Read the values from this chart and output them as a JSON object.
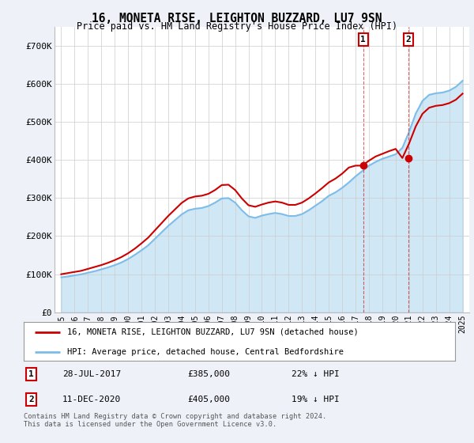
{
  "title": "16, MONETA RISE, LEIGHTON BUZZARD, LU7 9SN",
  "subtitle": "Price paid vs. HM Land Registry's House Price Index (HPI)",
  "hpi_label": "HPI: Average price, detached house, Central Bedfordshire",
  "property_label": "16, MONETA RISE, LEIGHTON BUZZARD, LU7 9SN (detached house)",
  "footer": "Contains HM Land Registry data © Crown copyright and database right 2024.\nThis data is licensed under the Open Government Licence v3.0.",
  "hpi_color": "#7bbce8",
  "property_color": "#cc0000",
  "background_color": "#eef2f8",
  "plot_bg": "#ffffff",
  "ylim": [
    0,
    750000
  ],
  "yticks": [
    0,
    100000,
    200000,
    300000,
    400000,
    500000,
    600000,
    700000
  ],
  "ytick_labels": [
    "£0",
    "£100K",
    "£200K",
    "£300K",
    "£400K",
    "£500K",
    "£600K",
    "£700K"
  ],
  "sale1_x": 2017.58,
  "sale1_y": 385000,
  "sale1_date": "28-JUL-2017",
  "sale1_price_str": "£385,000",
  "sale1_pct": "22% ↓ HPI",
  "sale2_x": 2020.95,
  "sale2_y": 405000,
  "sale2_date": "11-DEC-2020",
  "sale2_price_str": "£405,000",
  "sale2_pct": "19% ↓ HPI",
  "hpi_x": [
    1995.0,
    1995.5,
    1996.0,
    1996.5,
    1997.0,
    1997.5,
    1998.0,
    1998.5,
    1999.0,
    1999.5,
    2000.0,
    2000.5,
    2001.0,
    2001.5,
    2002.0,
    2002.5,
    2003.0,
    2003.5,
    2004.0,
    2004.5,
    2005.0,
    2005.5,
    2006.0,
    2006.5,
    2007.0,
    2007.5,
    2008.0,
    2008.5,
    2009.0,
    2009.5,
    2010.0,
    2010.5,
    2011.0,
    2011.5,
    2012.0,
    2012.5,
    2013.0,
    2013.5,
    2014.0,
    2014.5,
    2015.0,
    2015.5,
    2016.0,
    2016.5,
    2017.0,
    2017.5,
    2018.0,
    2018.5,
    2019.0,
    2019.5,
    2020.0,
    2020.5,
    2021.0,
    2021.5,
    2022.0,
    2022.5,
    2023.0,
    2023.5,
    2024.0,
    2024.5,
    2025.0
  ],
  "hpi_y": [
    92000,
    94000,
    97000,
    100000,
    104000,
    108000,
    113000,
    118000,
    124000,
    131000,
    140000,
    151000,
    163000,
    176000,
    193000,
    210000,
    227000,
    242000,
    257000,
    268000,
    272000,
    274000,
    279000,
    288000,
    299000,
    300000,
    288000,
    268000,
    252000,
    248000,
    254000,
    258000,
    261000,
    258000,
    253000,
    253000,
    258000,
    268000,
    280000,
    292000,
    306000,
    315000,
    327000,
    341000,
    357000,
    371000,
    385000,
    395000,
    403000,
    409000,
    415000,
    432000,
    474000,
    522000,
    555000,
    571000,
    575000,
    577000,
    582000,
    592000,
    608000
  ],
  "prop_x": [
    1995.0,
    1995.5,
    1996.0,
    1996.5,
    1997.0,
    1997.5,
    1998.0,
    1998.5,
    1999.0,
    1999.5,
    2000.0,
    2000.5,
    2001.0,
    2001.5,
    2002.0,
    2002.5,
    2003.0,
    2003.5,
    2004.0,
    2004.5,
    2005.0,
    2005.5,
    2006.0,
    2006.5,
    2007.0,
    2007.5,
    2008.0,
    2008.5,
    2009.0,
    2009.5,
    2010.0,
    2010.5,
    2011.0,
    2011.5,
    2012.0,
    2012.5,
    2013.0,
    2013.5,
    2014.0,
    2014.5,
    2015.0,
    2015.5,
    2016.0,
    2016.5,
    2017.0,
    2017.5,
    2018.0,
    2018.5,
    2019.0,
    2019.5,
    2020.0,
    2020.5,
    2021.0,
    2021.5,
    2022.0,
    2022.5,
    2023.0,
    2023.5,
    2024.0,
    2024.5,
    2025.0
  ],
  "prop_y": [
    100000,
    103000,
    106000,
    109000,
    114000,
    119000,
    124000,
    130000,
    137000,
    145000,
    155000,
    167000,
    181000,
    196000,
    215000,
    234000,
    253000,
    270000,
    287000,
    299000,
    304000,
    306000,
    311000,
    321000,
    334000,
    335000,
    321000,
    299000,
    281000,
    277000,
    283000,
    288000,
    291000,
    288000,
    282000,
    282000,
    288000,
    299000,
    312000,
    326000,
    341000,
    351000,
    364000,
    380000,
    385000,
    385000,
    398000,
    409000,
    416000,
    423000,
    429000,
    405000,
    443000,
    488000,
    521000,
    537000,
    542000,
    544000,
    549000,
    558000,
    574000
  ],
  "xtick_years": [
    1995,
    1996,
    1997,
    1998,
    1999,
    2000,
    2001,
    2002,
    2003,
    2004,
    2005,
    2006,
    2007,
    2008,
    2009,
    2010,
    2011,
    2012,
    2013,
    2014,
    2015,
    2016,
    2017,
    2018,
    2019,
    2020,
    2021,
    2022,
    2023,
    2024,
    2025
  ],
  "xlim": [
    1994.5,
    2025.5
  ]
}
